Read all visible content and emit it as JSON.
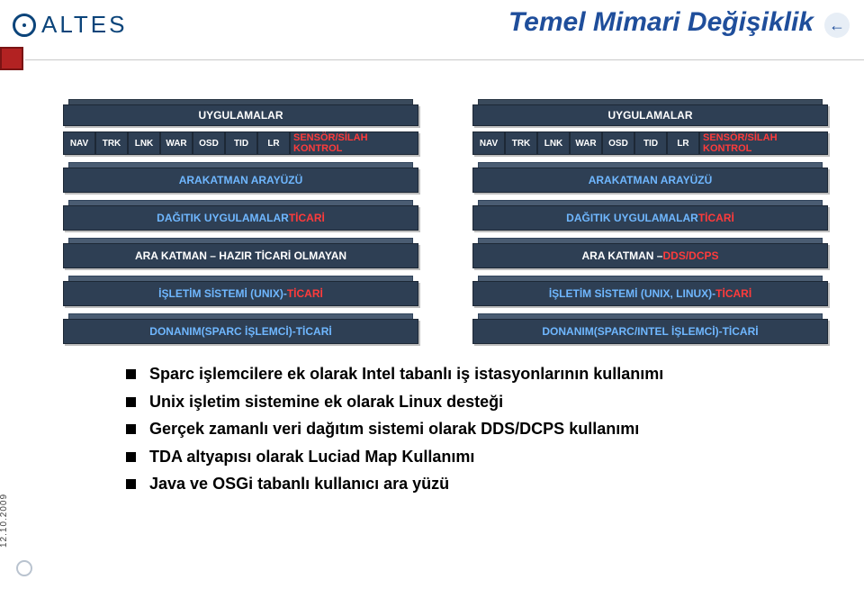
{
  "logo_text": "ALTES",
  "title": "Temel Mimari Değişiklik",
  "back_glyph": "←",
  "date": "12.10.2009",
  "tabs": [
    "NAV",
    "TRK",
    "LNK",
    "WAR",
    "OSD",
    "TID",
    "LR"
  ],
  "tab_wide": "SENSÖR/SİLAH KONTROL",
  "stack_left": {
    "header": "UYGULAMALAR",
    "layers": [
      {
        "segments": [
          {
            "text": "ARAKATMAN ARAYÜZÜ",
            "cls": "blue"
          }
        ]
      },
      {
        "segments": [
          {
            "text": "DAĞITIK UYGULAMALAR ",
            "cls": "blue"
          },
          {
            "text": "TİCARİ",
            "cls": "red"
          }
        ]
      },
      {
        "segments": [
          {
            "text": "ARA KATMAN – HAZIR TİCARİ OLMAYAN",
            "cls": "plain"
          }
        ]
      },
      {
        "segments": [
          {
            "text": "İŞLETİM SİSTEMİ (UNIX)- ",
            "cls": "blue"
          },
          {
            "text": "TİCARİ",
            "cls": "red"
          }
        ]
      },
      {
        "segments": [
          {
            "text": "DONANIM(SPARC İŞLEMCİ)-TİCARİ",
            "cls": "blue"
          }
        ]
      }
    ]
  },
  "stack_right": {
    "header": "UYGULAMALAR",
    "layers": [
      {
        "segments": [
          {
            "text": "ARAKATMAN ARAYÜZÜ",
            "cls": "blue"
          }
        ]
      },
      {
        "segments": [
          {
            "text": "DAĞITIK UYGULAMALAR ",
            "cls": "blue"
          },
          {
            "text": "TİCARİ",
            "cls": "red"
          }
        ]
      },
      {
        "segments": [
          {
            "text": "ARA KATMAN – ",
            "cls": "plain"
          },
          {
            "text": "DDS/DCPS",
            "cls": "red"
          }
        ]
      },
      {
        "segments": [
          {
            "text": "İŞLETİM SİSTEMİ (UNIX, LINUX)- ",
            "cls": "blue"
          },
          {
            "text": "TİCARİ",
            "cls": "red"
          }
        ]
      },
      {
        "segments": [
          {
            "text": "DONANIM(SPARC/INTEL İŞLEMCİ)-TİCARİ",
            "cls": "blue"
          }
        ]
      }
    ]
  },
  "bullets": [
    "Sparc işlemcilere ek olarak Intel tabanlı iş istasyonlarının kullanımı",
    "Unix işletim sistemine ek olarak Linux desteği",
    "Gerçek zamanlı veri dağıtım sistemi olarak DDS/DCPS kullanımı",
    "TDA altyapısı olarak Luciad Map Kullanımı",
    "Java ve OSGi tabanlı kullanıcı ara yüzü"
  ],
  "colors": {
    "title": "#1f4e9b",
    "box": "#2e3f54",
    "box_back": "#4a5c72",
    "hdr_back": "#3a4a5c",
    "blue_text": "#6fb7ff",
    "red_text": "#ff3b3b",
    "red_square": "#b22222"
  }
}
